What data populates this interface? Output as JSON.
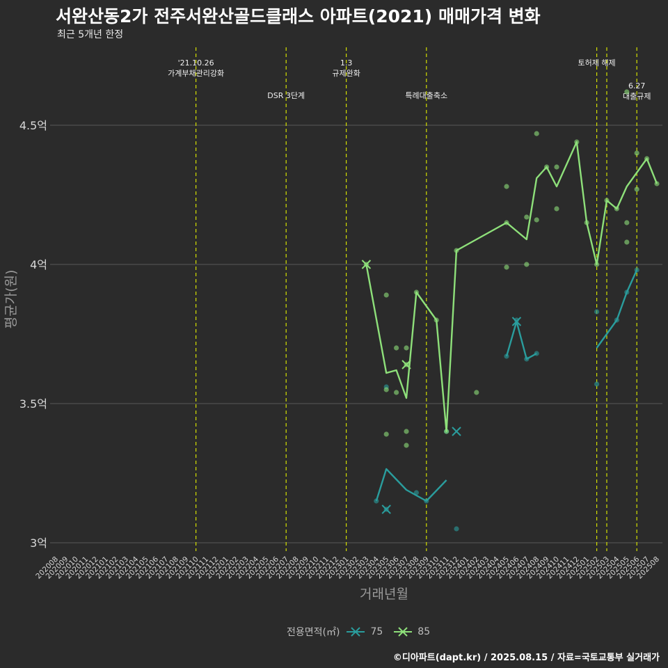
{
  "title": "서완산동2가 전주서완산골드클래스 아파트(2021) 매매가격 변화",
  "subtitle": "최근 5개년 한정",
  "caption": "©디아파트(dapt.kr) / 2025.08.15 / 자료=국토교통부 실거래가",
  "legend": {
    "title": "전용면적(㎡)",
    "items": [
      {
        "label": "75",
        "color": "#2a9d9d"
      },
      {
        "label": "85",
        "color": "#8ee07a"
      }
    ]
  },
  "colors": {
    "s75": "#2a9d9d",
    "s85": "#8ee07a",
    "event": "#d4e000",
    "grid": "#5a5a5a",
    "axis_text": "#d8d8d8"
  },
  "chart_data": {
    "type": "line",
    "title": "서완산동2가 전주서완산골드클래스 아파트(2021) 매매가격 변화",
    "xlabel": "거래년월",
    "ylabel": "평균가(원)",
    "ylim": [
      2.97,
      4.78
    ],
    "yticks": [
      3,
      3.5,
      4,
      4.5
    ],
    "ytick_labels": [
      "3억",
      "3.5억",
      "4억",
      "4.5억"
    ],
    "categories": [
      "202008",
      "202009",
      "202010",
      "202011",
      "202012",
      "202101",
      "202102",
      "202103",
      "202104",
      "202105",
      "202106",
      "202107",
      "202108",
      "202109",
      "202110",
      "202111",
      "202112",
      "202201",
      "202202",
      "202203",
      "202204",
      "202205",
      "202206",
      "202207",
      "202208",
      "202209",
      "202210",
      "202211",
      "202212",
      "202301",
      "202302",
      "202303",
      "202304",
      "202305",
      "202306",
      "202307",
      "202308",
      "202309",
      "202310",
      "202311",
      "202312",
      "202401",
      "202402",
      "202403",
      "202404",
      "202405",
      "202406",
      "202407",
      "202408",
      "202409",
      "202410",
      "202411",
      "202412",
      "202501",
      "202502",
      "202503",
      "202504",
      "202505",
      "202506",
      "202507",
      "202508"
    ],
    "events": [
      {
        "month": "202110",
        "label": "'21.10.26\n가계부채관리강화",
        "row": 0
      },
      {
        "month": "202207",
        "label": "DSR 3단계",
        "row": 1
      },
      {
        "month": "202301",
        "label": "1.3\n규제완화",
        "row": 0
      },
      {
        "month": "202309",
        "label": "특례대출축소",
        "row": 1
      },
      {
        "month": "202502",
        "label": "토허제 해제",
        "row": 0
      },
      {
        "month": "202503",
        "label": "",
        "row": 0
      },
      {
        "month": "202506",
        "label": "6.27\n대출규제",
        "row": 1
      }
    ],
    "series": [
      {
        "name": "75",
        "line": [
          [
            "202304",
            3.15
          ],
          [
            "202305",
            3.265
          ],
          [
            "202307",
            3.19
          ],
          [
            "202309",
            3.15
          ],
          [
            "202311",
            3.225
          ],
          null,
          [
            "202405",
            3.67
          ],
          [
            "202406",
            3.795
          ],
          [
            "202407",
            3.66
          ],
          [
            "202408",
            3.68
          ],
          null,
          [
            "202502",
            3.7
          ],
          [
            "202504",
            3.8
          ],
          [
            "202505",
            3.9
          ],
          [
            "202506",
            3.98
          ]
        ],
        "points": [
          [
            "202304",
            3.15
          ],
          [
            "202305",
            3.12
          ],
          [
            "202305",
            3.56
          ],
          [
            "202308",
            3.18
          ],
          [
            "202309",
            3.15
          ],
          [
            "202311",
            3.4
          ],
          [
            "202312",
            3.05
          ],
          [
            "202405",
            3.67
          ],
          [
            "202406",
            3.8
          ],
          [
            "202407",
            3.66
          ],
          [
            "202408",
            3.68
          ],
          [
            "202502",
            3.83
          ],
          [
            "202502",
            3.57
          ],
          [
            "202504",
            3.8
          ],
          [
            "202505",
            3.9
          ],
          [
            "202506",
            3.98
          ]
        ],
        "crosses": [
          [
            "202305",
            3.12
          ],
          [
            "202312",
            3.4
          ],
          [
            "202406",
            3.795
          ]
        ]
      },
      {
        "name": "85",
        "line": [
          [
            "202303",
            4.0
          ],
          [
            "202305",
            3.61
          ],
          [
            "202306",
            3.62
          ],
          [
            "202307",
            3.52
          ],
          [
            "202308",
            3.9
          ],
          [
            "202310",
            3.8
          ],
          [
            "202311",
            3.4
          ],
          [
            "202312",
            4.05
          ],
          [
            "202405",
            4.15
          ],
          [
            "202407",
            4.09
          ],
          [
            "202408",
            4.31
          ],
          [
            "202409",
            4.35
          ],
          [
            "202410",
            4.28
          ],
          [
            "202412",
            4.44
          ],
          [
            "202501",
            4.15
          ],
          [
            "202502",
            4.0
          ],
          [
            "202503",
            4.23
          ],
          [
            "202504",
            4.2
          ],
          [
            "202505",
            4.28
          ],
          [
            "202507",
            4.38
          ],
          [
            "202508",
            4.29
          ]
        ],
        "points": [
          [
            "202303",
            4.0
          ],
          [
            "202305",
            3.89
          ],
          [
            "202305",
            3.55
          ],
          [
            "202305",
            3.39
          ],
          [
            "202306",
            3.7
          ],
          [
            "202306",
            3.54
          ],
          [
            "202307",
            3.7
          ],
          [
            "202307",
            3.64
          ],
          [
            "202307",
            3.4
          ],
          [
            "202307",
            3.35
          ],
          [
            "202308",
            3.9
          ],
          [
            "202310",
            3.8
          ],
          [
            "202311",
            3.4
          ],
          [
            "202312",
            4.05
          ],
          [
            "202402",
            3.54
          ],
          [
            "202405",
            4.28
          ],
          [
            "202405",
            4.15
          ],
          [
            "202405",
            3.99
          ],
          [
            "202407",
            4.17
          ],
          [
            "202407",
            4.0
          ],
          [
            "202408",
            4.47
          ],
          [
            "202408",
            4.16
          ],
          [
            "202409",
            4.35
          ],
          [
            "202410",
            4.35
          ],
          [
            "202410",
            4.2
          ],
          [
            "202412",
            4.44
          ],
          [
            "202501",
            4.15
          ],
          [
            "202502",
            4.0
          ],
          [
            "202503",
            4.23
          ],
          [
            "202504",
            4.2
          ],
          [
            "202505",
            4.62
          ],
          [
            "202505",
            4.15
          ],
          [
            "202505",
            4.08
          ],
          [
            "202506",
            4.4
          ],
          [
            "202506",
            4.27
          ],
          [
            "202507",
            4.38
          ],
          [
            "202508",
            4.29
          ]
        ],
        "crosses": [
          [
            "202303",
            4.0
          ],
          [
            "202307",
            3.64
          ]
        ]
      }
    ]
  }
}
